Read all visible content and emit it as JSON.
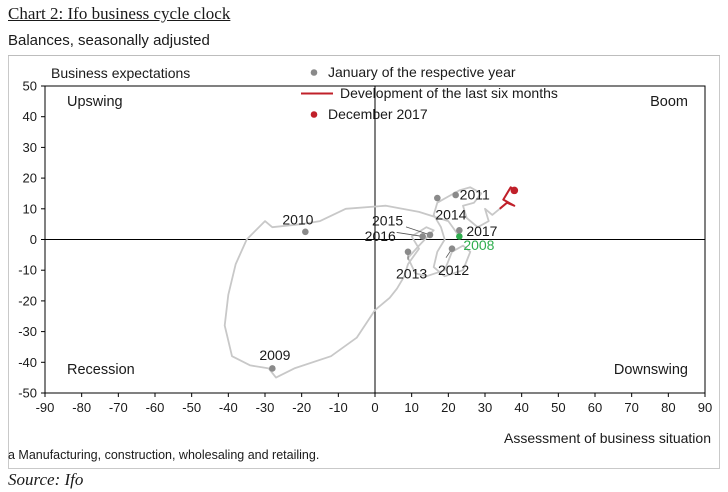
{
  "header": {
    "title": "Chart 2: Ifo business cycle clock",
    "subtitle": "Balances, seasonally adjusted"
  },
  "footer": {
    "footnote": "a Manufacturing, construction, wholesaling and retailing.",
    "source": "Source: Ifo"
  },
  "colors": {
    "axis": "#000000",
    "line": "#c8c8c8",
    "dot": "#8a8a8a",
    "highlight": "#c0202a",
    "green": "#2fae4e"
  },
  "chart_data": {
    "type": "scatter",
    "title": "Ifo business cycle clock",
    "xlabel": "Assessment of business situation",
    "ylabel": "Business expectations",
    "xlim": [
      -90,
      90
    ],
    "ylim": [
      -50,
      50
    ],
    "xticks": [
      -90,
      -80,
      -70,
      -60,
      -50,
      -40,
      -30,
      -20,
      -10,
      0,
      10,
      20,
      30,
      40,
      50,
      60,
      70,
      80,
      90
    ],
    "yticks": [
      -50,
      -40,
      -30,
      -20,
      -10,
      0,
      10,
      20,
      30,
      40,
      50
    ],
    "quadrants": {
      "upswing": "Upswing",
      "boom": "Boom",
      "recession": "Recession",
      "downswing": "Downswing"
    },
    "legend": [
      {
        "label": "January of the respective year",
        "type": "dot",
        "color": "#8a8a8a"
      },
      {
        "label": "Development of the last six months",
        "type": "line",
        "color": "#c0202a"
      },
      {
        "label": "December 2017",
        "type": "dot",
        "color": "#c0202a"
      }
    ],
    "points": [
      {
        "label": "2008",
        "x": 23,
        "y": 1,
        "color": "#2fae4e"
      },
      {
        "label": "2009",
        "x": -28,
        "y": -42
      },
      {
        "label": "2010",
        "x": -19,
        "y": 2.5
      },
      {
        "label": "2011",
        "x": 22,
        "y": 14.5
      },
      {
        "label": "2012",
        "x": 21,
        "y": -3
      },
      {
        "label": "2013",
        "x": 9,
        "y": -4
      },
      {
        "label": "2014",
        "x": 17,
        "y": 13.5
      },
      {
        "label": "2015",
        "x": 15,
        "y": 1.5
      },
      {
        "label": "2016",
        "x": 13,
        "y": 1
      },
      {
        "label": "2017",
        "x": 23,
        "y": 3
      }
    ],
    "history_path": [
      [
        23,
        1
      ],
      [
        20,
        6
      ],
      [
        12,
        9
      ],
      [
        3,
        11
      ],
      [
        -8,
        10
      ],
      [
        -15,
        6
      ],
      [
        -20,
        5
      ],
      [
        -28,
        4
      ],
      [
        -30,
        6
      ],
      [
        -35,
        0
      ],
      [
        -38,
        -8
      ],
      [
        -40,
        -18
      ],
      [
        -41,
        -28
      ],
      [
        -39,
        -38
      ],
      [
        -34,
        -41
      ],
      [
        -29,
        -42
      ],
      [
        -27,
        -45
      ],
      [
        -22,
        -42
      ],
      [
        -12,
        -38
      ],
      [
        -5,
        -32
      ],
      [
        0,
        -23
      ],
      [
        4,
        -19
      ],
      [
        6,
        -16
      ],
      [
        8,
        -12
      ],
      [
        9,
        -8
      ],
      [
        12,
        -3
      ],
      [
        10,
        1
      ],
      [
        14,
        4
      ],
      [
        16,
        3
      ],
      [
        12,
        -2
      ],
      [
        9,
        -6
      ],
      [
        11,
        -11
      ],
      [
        14,
        -12
      ],
      [
        19,
        -10
      ],
      [
        21,
        -4
      ],
      [
        24,
        -2
      ],
      [
        26,
        -4
      ],
      [
        24,
        -10
      ],
      [
        19,
        -12
      ],
      [
        16,
        -9
      ],
      [
        17,
        -4
      ],
      [
        19,
        0
      ],
      [
        18,
        4
      ],
      [
        16,
        8
      ],
      [
        17,
        12
      ],
      [
        20,
        14
      ],
      [
        23,
        16
      ],
      [
        26,
        17
      ],
      [
        29,
        15
      ],
      [
        27,
        12
      ],
      [
        24,
        11
      ],
      [
        25,
        7
      ],
      [
        28,
        4
      ],
      [
        31,
        6
      ],
      [
        30,
        10
      ],
      [
        32,
        8
      ],
      [
        34,
        10
      ]
    ],
    "last_six_months": [
      [
        34,
        10
      ],
      [
        36,
        12
      ],
      [
        38,
        11
      ],
      [
        35,
        13
      ],
      [
        37,
        17
      ],
      [
        38,
        16
      ]
    ],
    "december_2017": {
      "x": 38,
      "y": 16
    }
  }
}
